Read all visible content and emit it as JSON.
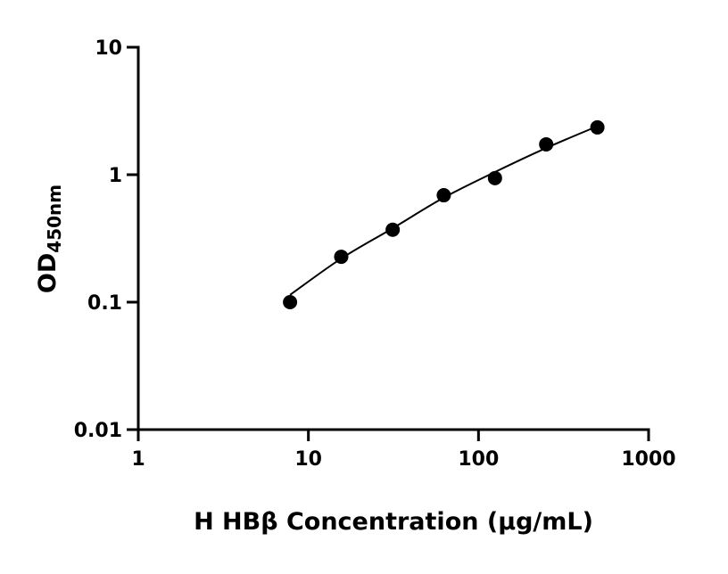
{
  "chart_data": {
    "type": "scatter",
    "xlabel": "H HBβ Concentration (μg/mL)",
    "ylabel": "OD",
    "ylabel_subscript": "450nm",
    "xscale": "log",
    "yscale": "log",
    "xlim": [
      1,
      1000
    ],
    "xticks": [
      1,
      10,
      100,
      1000
    ],
    "ylim": [
      0.01,
      10
    ],
    "yticks": [
      0.01,
      0.1,
      1,
      10
    ],
    "series": [
      {
        "color": "#000000",
        "x": [
          7.8,
          15.6,
          31.3,
          62.5,
          125,
          250,
          500
        ],
        "values": [
          0.1,
          0.227,
          0.37,
          0.69,
          0.94,
          1.73,
          2.35
        ]
      }
    ],
    "fit": {
      "color": "#000000",
      "x": [
        7.8,
        15.6,
        31.3,
        62.5,
        125,
        250,
        500
      ],
      "values": [
        0.114,
        0.22,
        0.38,
        0.66,
        1.05,
        1.62,
        2.4
      ]
    }
  }
}
